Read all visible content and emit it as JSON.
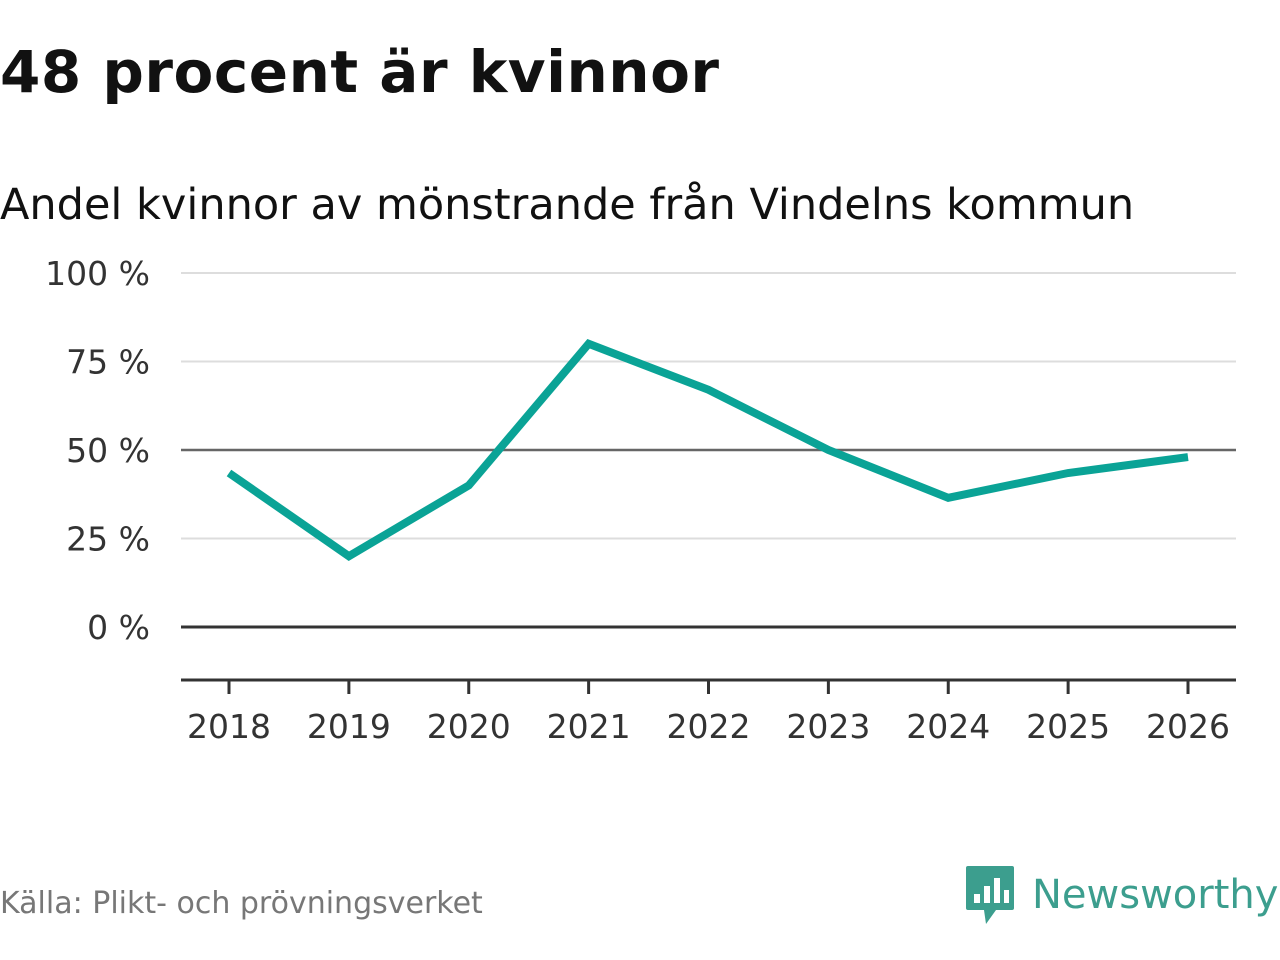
{
  "header": {
    "title": "48 procent är kvinnor",
    "subtitle": "Andel kvinnor av mönstrande från Vindelns kommun"
  },
  "footer": {
    "source": "Källa: Plikt- och prövningsverket",
    "brand": "Newsworthy",
    "brand_icon": "newsworthy-logo-icon"
  },
  "colors": {
    "line": "#0aa396",
    "gridline": "#dddddd",
    "reference_line": "#666666",
    "zero_line": "#333333",
    "axis": "#333333",
    "brand": "#3c9e8e"
  },
  "chart_data": {
    "type": "line",
    "title": "Andel kvinnor av mönstrande från Vindelns kommun",
    "xlabel": "",
    "ylabel": "",
    "x": [
      "2018",
      "2019",
      "2020",
      "2021",
      "2022",
      "2023",
      "2024",
      "2025",
      "2026"
    ],
    "series": [
      {
        "name": "Andel kvinnor",
        "values": [
          43.5,
          20,
          40,
          80,
          67,
          50,
          36.5,
          43.5,
          48
        ]
      }
    ],
    "ylim": [
      -15,
      100
    ],
    "yticks": [
      0,
      25,
      50,
      75,
      100
    ],
    "ytick_labels": [
      "0 %",
      "25 %",
      "50 %",
      "75 %",
      "100 %"
    ],
    "reference_lines": [
      50
    ],
    "grid": true,
    "legend": "none"
  }
}
